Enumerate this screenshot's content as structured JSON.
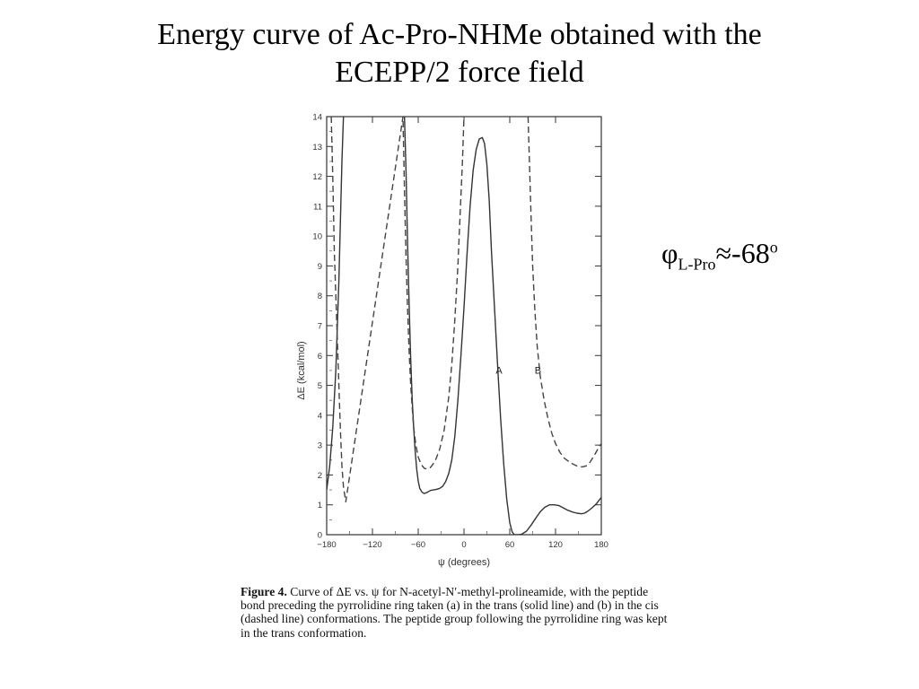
{
  "slide": {
    "title_line1": "Energy curve of Ac-Pro-NHMe obtained with the",
    "title_line2": "ECEPP/2 force field",
    "phi_symbol": "φ",
    "phi_subscript": "L-Pro",
    "phi_value": "≈-68",
    "phi_superscript": "o"
  },
  "caption": {
    "label": "Figure 4.",
    "text": "Curve of ΔE vs. ψ for N-acetyl-N′-methyl-prolineamide, with the peptide bond preceding the pyrrolidine ring taken (a) in the trans (solid line) and (b) in the cis (dashed line) conformations. The peptide group following the pyrrolidine ring was kept in the trans conformation."
  },
  "chart_data": {
    "type": "line",
    "xlabel": "ψ (degrees)",
    "ylabel": "ΔE (kcal/mol)",
    "xlim": [
      -180,
      180
    ],
    "ylim": [
      0,
      14
    ],
    "x_ticks": [
      -180,
      -120,
      -60,
      0,
      60,
      120,
      180
    ],
    "y_ticks": [
      0,
      1,
      2,
      3,
      4,
      5,
      6,
      7,
      8,
      9,
      10,
      11,
      12,
      13,
      14
    ],
    "grid": false,
    "series": [
      {
        "name": "A",
        "style": "solid",
        "color": "#333333",
        "points": [
          [
            -180,
            1.5
          ],
          [
            -176,
            2.3
          ],
          [
            -172,
            3.6
          ],
          [
            -168,
            5.5
          ],
          [
            -164,
            8.5
          ],
          [
            -160,
            12.5
          ],
          [
            -158,
            14.0
          ],
          [
            -78,
            14.0
          ],
          [
            -76,
            12.2
          ],
          [
            -74,
            9.8
          ],
          [
            -72,
            7.8
          ],
          [
            -70,
            6.0
          ],
          [
            -68,
            4.6
          ],
          [
            -66,
            3.6
          ],
          [
            -64,
            2.8
          ],
          [
            -62,
            2.2
          ],
          [
            -60,
            1.8
          ],
          [
            -58,
            1.55
          ],
          [
            -55,
            1.42
          ],
          [
            -52,
            1.38
          ],
          [
            -48,
            1.42
          ],
          [
            -44,
            1.48
          ],
          [
            -40,
            1.5
          ],
          [
            -36,
            1.52
          ],
          [
            -32,
            1.55
          ],
          [
            -28,
            1.62
          ],
          [
            -24,
            1.78
          ],
          [
            -20,
            2.05
          ],
          [
            -16,
            2.5
          ],
          [
            -12,
            3.3
          ],
          [
            -8,
            4.5
          ],
          [
            -4,
            6.0
          ],
          [
            0,
            7.6
          ],
          [
            4,
            9.4
          ],
          [
            8,
            11.0
          ],
          [
            12,
            12.2
          ],
          [
            16,
            12.9
          ],
          [
            20,
            13.25
          ],
          [
            24,
            13.3
          ],
          [
            27,
            13.1
          ],
          [
            30,
            12.4
          ],
          [
            33,
            11.2
          ],
          [
            36,
            9.5
          ],
          [
            40,
            7.6
          ],
          [
            44,
            5.7
          ],
          [
            48,
            3.9
          ],
          [
            52,
            2.4
          ],
          [
            56,
            1.2
          ],
          [
            60,
            0.4
          ],
          [
            63,
            0.1
          ],
          [
            66,
            0.0
          ],
          [
            72,
            0.0
          ],
          [
            76,
            0.02
          ],
          [
            82,
            0.12
          ],
          [
            88,
            0.32
          ],
          [
            94,
            0.55
          ],
          [
            100,
            0.77
          ],
          [
            106,
            0.92
          ],
          [
            112,
            1.0
          ],
          [
            118,
            1.0
          ],
          [
            124,
            0.98
          ],
          [
            130,
            0.9
          ],
          [
            136,
            0.82
          ],
          [
            142,
            0.76
          ],
          [
            148,
            0.72
          ],
          [
            154,
            0.7
          ],
          [
            158,
            0.72
          ],
          [
            162,
            0.78
          ],
          [
            168,
            0.9
          ],
          [
            174,
            1.05
          ],
          [
            180,
            1.25
          ]
        ]
      },
      {
        "name": "B",
        "style": "dashed",
        "color": "#444444",
        "points": [
          [
            -174,
            14.0
          ],
          [
            -172,
            12.0
          ],
          [
            -170,
            9.5
          ],
          [
            -168,
            8.0
          ],
          [
            -166,
            6.5
          ],
          [
            -164,
            5.0
          ],
          [
            -162,
            3.5
          ],
          [
            -160,
            2.3
          ],
          [
            -158,
            1.6
          ],
          [
            -155,
            1.1
          ],
          [
            -80,
            14.0
          ],
          [
            -78,
            11.5
          ],
          [
            -76,
            9.3
          ],
          [
            -74,
            7.6
          ],
          [
            -72,
            6.2
          ],
          [
            -70,
            5.1
          ],
          [
            -68,
            4.3
          ],
          [
            -66,
            3.6
          ],
          [
            -63,
            3.0
          ],
          [
            -60,
            2.6
          ],
          [
            -56,
            2.35
          ],
          [
            -52,
            2.22
          ],
          [
            -48,
            2.2
          ],
          [
            -44,
            2.25
          ],
          [
            -38,
            2.45
          ],
          [
            -32,
            2.85
          ],
          [
            -26,
            3.5
          ],
          [
            -20,
            4.6
          ],
          [
            -16,
            5.7
          ],
          [
            -12,
            7.2
          ],
          [
            -8,
            9.0
          ],
          [
            -5,
            10.8
          ],
          [
            -2,
            12.5
          ],
          [
            0,
            14.0
          ],
          [
            84,
            14.0
          ],
          [
            86,
            12.3
          ],
          [
            88,
            10.6
          ],
          [
            90,
            9.0
          ],
          [
            93,
            7.5
          ],
          [
            96,
            6.3
          ],
          [
            100,
            5.3
          ],
          [
            105,
            4.5
          ],
          [
            110,
            3.9
          ],
          [
            115,
            3.4
          ],
          [
            120,
            3.05
          ],
          [
            126,
            2.75
          ],
          [
            132,
            2.55
          ],
          [
            140,
            2.4
          ],
          [
            148,
            2.3
          ],
          [
            155,
            2.27
          ],
          [
            160,
            2.3
          ],
          [
            165,
            2.42
          ],
          [
            170,
            2.62
          ],
          [
            175,
            2.85
          ],
          [
            180,
            3.05
          ]
        ]
      }
    ],
    "annotations": [
      {
        "text": "A",
        "x": 46,
        "y": 5.4
      },
      {
        "text": "B",
        "x": 97,
        "y": 5.4
      }
    ]
  }
}
